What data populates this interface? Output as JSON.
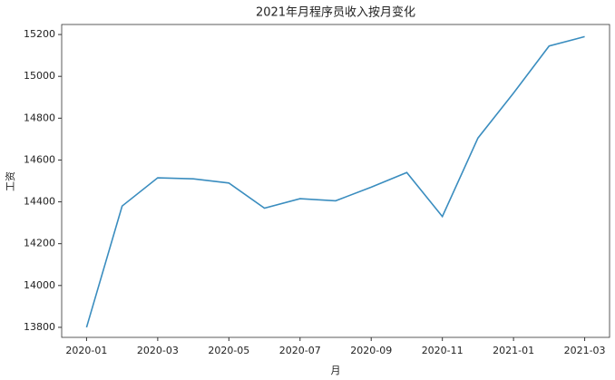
{
  "chart_data": {
    "type": "line",
    "title": "2021年月程序员收入按月变化",
    "x_label": "月",
    "y_label": "工资",
    "x": [
      "2020-01",
      "2020-02",
      "2020-03",
      "2020-04",
      "2020-05",
      "2020-06",
      "2020-07",
      "2020-08",
      "2020-09",
      "2020-10",
      "2020-11",
      "2020-12",
      "2021-01",
      "2021-02",
      "2021-03"
    ],
    "xticks": [
      "2020-01",
      "2020-03",
      "2020-05",
      "2020-07",
      "2020-09",
      "2020-11",
      "2021-01",
      "2021-03"
    ],
    "series": [
      {
        "name": "工资",
        "color": "#3a8dbf",
        "values": [
          13800,
          14380,
          14515,
          14510,
          14490,
          14370,
          14415,
          14405,
          14470,
          14540,
          14330,
          14705,
          14920,
          15145,
          15190
        ]
      }
    ],
    "ylim": [
      13752,
      15248
    ],
    "yticks": [
      13800,
      14000,
      14200,
      14400,
      14600,
      14800,
      15000,
      15200
    ],
    "grid": false
  }
}
